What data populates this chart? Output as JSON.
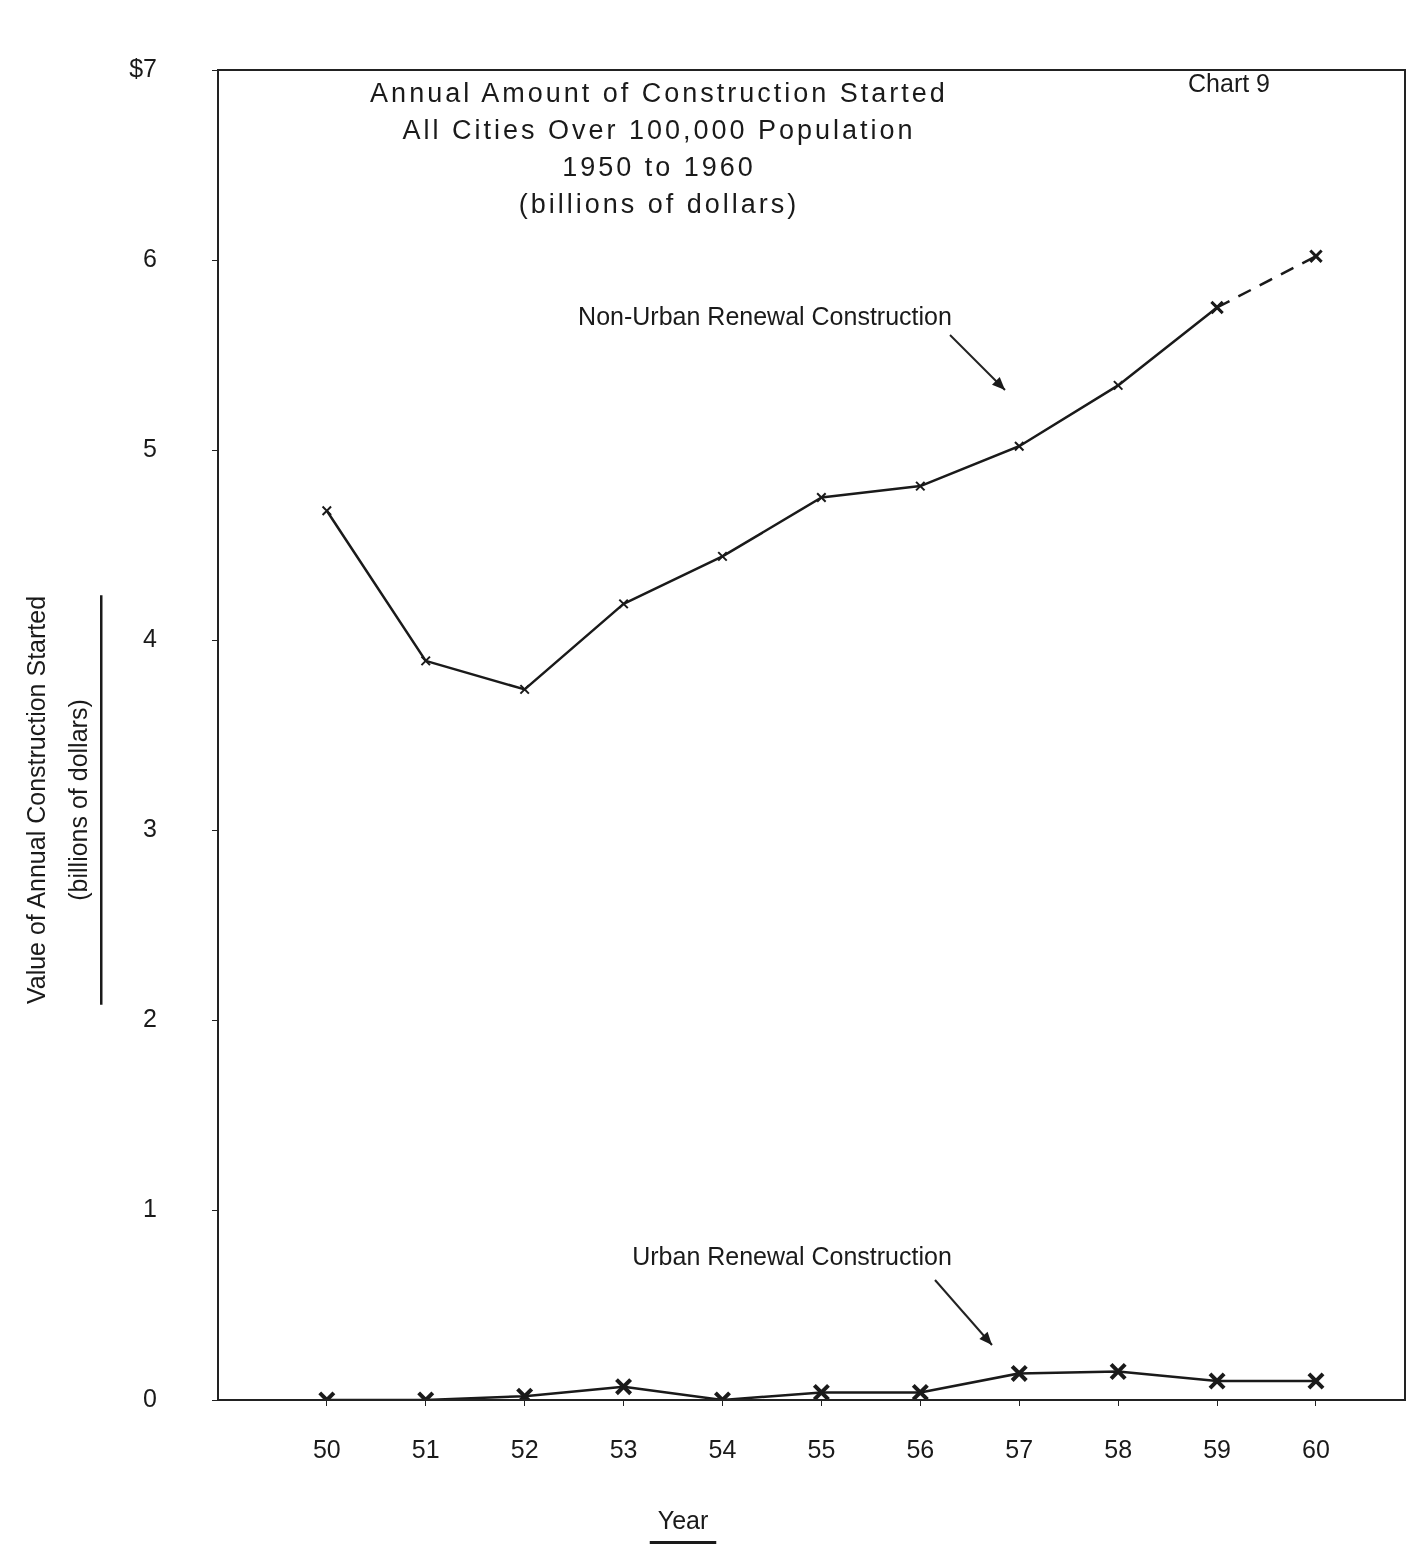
{
  "chart_data": {
    "type": "line",
    "title": "Annual Amount of Construction Started",
    "subtitle": "All Cities Over 100,000 Population\n1950 to 1960\n(billions of dollars)",
    "xlabel": "Year",
    "ylabel": "Value of Annual Construction Started\n(billions of dollars)",
    "xlim": [
      48.9,
      60.9
    ],
    "xticks": [
      50,
      51,
      52,
      53,
      54,
      55,
      56,
      57,
      58,
      59,
      60
    ],
    "ylim": [
      0,
      7
    ],
    "yticks": [
      0,
      1,
      2,
      3,
      4,
      5,
      6,
      {
        "value": 7,
        "label": "$7"
      }
    ],
    "marker": "cross",
    "grid": false,
    "series": [
      {
        "color": "#1a1a1a",
        "line_style": "solid",
        "x": [
          50,
          51,
          52,
          53,
          54,
          55,
          56,
          57,
          58,
          59
        ],
        "values": [
          4.68,
          3.89,
          3.74,
          4.19,
          4.44,
          4.75,
          4.81,
          5.02,
          5.34,
          5.75
        ]
      },
      {
        "color": "#1a1a1a",
        "line_style": "dashed",
        "x": [
          59,
          60
        ],
        "values": [
          5.75,
          6.02
        ]
      },
      {
        "color": "#1a1a1a",
        "line_style": "solid",
        "x": [
          50,
          51,
          52,
          53,
          54,
          55,
          56,
          57,
          58,
          59,
          60
        ],
        "values": [
          0,
          0,
          0.02,
          0.07,
          0,
          0.04,
          0.04,
          0.14,
          0.15,
          0.1,
          0.1
        ]
      }
    ],
    "annotations": [
      "Chart 9",
      "Non-Urban Renewal Construction",
      "Urban Renewal Construction"
    ]
  }
}
